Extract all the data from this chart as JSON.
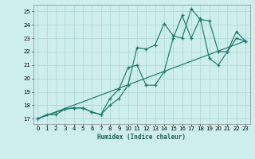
{
  "xlabel": "Humidex (Indice chaleur)",
  "bg_color": "#ceeeed",
  "grid_color": "#b0d8d8",
  "line_color": "#1a7a6e",
  "xlim": [
    -0.5,
    23.5
  ],
  "ylim": [
    16.6,
    25.5
  ],
  "xticks": [
    0,
    1,
    2,
    3,
    4,
    5,
    6,
    7,
    8,
    9,
    10,
    11,
    12,
    13,
    14,
    15,
    16,
    17,
    18,
    19,
    20,
    21,
    22,
    23
  ],
  "yticks": [
    17,
    18,
    19,
    20,
    21,
    22,
    23,
    24,
    25
  ],
  "series1_x": [
    0,
    1,
    2,
    3,
    4,
    5,
    6,
    7,
    8,
    9,
    10,
    11,
    12,
    13,
    14,
    15,
    16,
    17,
    18,
    19,
    20,
    21,
    22,
    23
  ],
  "series1_y": [
    17.0,
    17.3,
    17.3,
    17.7,
    17.8,
    17.8,
    17.5,
    17.3,
    18.0,
    18.5,
    19.5,
    22.3,
    22.2,
    22.5,
    24.1,
    23.2,
    23.0,
    25.2,
    24.4,
    24.3,
    22.0,
    22.0,
    23.0,
    22.8
  ],
  "series2_x": [
    0,
    3,
    4,
    5,
    6,
    7,
    8,
    9,
    10,
    11,
    12,
    13,
    14,
    15,
    16,
    17,
    18,
    19,
    20,
    21,
    22,
    23
  ],
  "series2_y": [
    17.0,
    17.7,
    17.8,
    17.8,
    17.5,
    17.3,
    18.5,
    19.2,
    20.8,
    21.0,
    19.5,
    19.5,
    20.5,
    23.0,
    24.7,
    23.0,
    24.5,
    21.5,
    21.0,
    22.0,
    23.5,
    22.8
  ],
  "series3_x": [
    0,
    23
  ],
  "series3_y": [
    17.0,
    22.8
  ]
}
